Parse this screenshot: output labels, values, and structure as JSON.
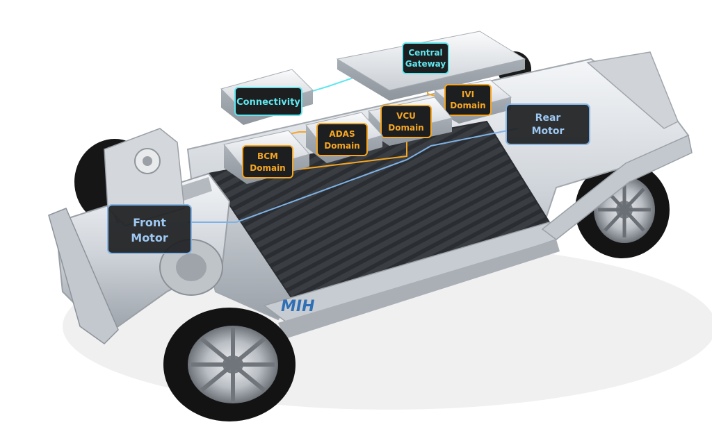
{
  "labels": {
    "connectivity": "Connectivity",
    "central_gateway_line1": "Central",
    "central_gateway_line2": "Gateway",
    "ivi_line1": "IVI",
    "ivi_line2": "Domain",
    "vcu_line1": "VCU",
    "vcu_line2": "Domain",
    "adas_line1": "ADAS",
    "adas_line2": "Domain",
    "bcm_line1": "BCM",
    "bcm_line2": "Domain",
    "front_motor_line1": "Front",
    "front_motor_line2": "Motor",
    "rear_motor_line1": "Rear",
    "rear_motor_line2": "Motor"
  },
  "logo": "MIH",
  "colors": {
    "teal": "#5fe6ee",
    "orange": "#f5a623",
    "blue": "#7fb2e6",
    "chassis": "#d9dde2",
    "battery": "#3b3f44",
    "tire": "#141414"
  }
}
